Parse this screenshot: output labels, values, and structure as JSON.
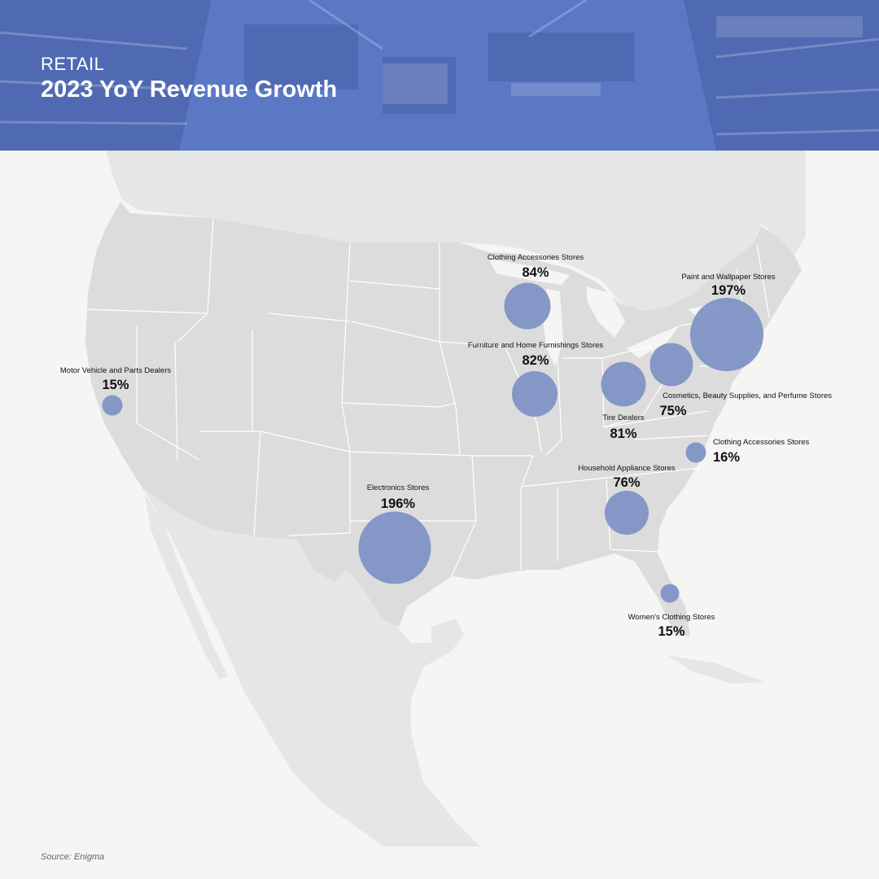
{
  "header": {
    "kicker": "RETAIL",
    "title": "2023 YoY Revenue Growth"
  },
  "source": "Source: Enigma",
  "colors": {
    "header_blue": "#5b78c4",
    "bubble": "#7a8fc4",
    "land": "#dcdcdc",
    "land_outer": "#e6e6e6",
    "background": "#f5f5f4",
    "state_border": "#ffffff"
  },
  "chart_data": {
    "type": "bubble-map",
    "region": "United States",
    "metric": "2023 YoY Revenue Growth",
    "points": [
      {
        "category": "Motor Vehicle and Parts Dealers",
        "value": "15%",
        "growth_pct": 15,
        "location": "Northern California"
      },
      {
        "category": "Clothing Accessories Stores",
        "value": "84%",
        "growth_pct": 84,
        "location": "Wisconsin"
      },
      {
        "category": "Furniture and Home Furnishings Stores",
        "value": "82%",
        "growth_pct": 82,
        "location": "Illinois"
      },
      {
        "category": "Paint and Wallpaper Stores",
        "value": "197%",
        "growth_pct": 197,
        "location": "New York / Connecticut"
      },
      {
        "category": "Tire Dealers",
        "value": "81%",
        "growth_pct": 81,
        "location": "Ohio"
      },
      {
        "category": "Cosmetics, Beauty Supplies, and Perfume Stores",
        "value": "75%",
        "growth_pct": 75,
        "location": "Pennsylvania"
      },
      {
        "category": "Clothing Accessories Stores",
        "value": "16%",
        "growth_pct": 16,
        "location": "North Carolina"
      },
      {
        "category": "Household Appliance Stores",
        "value": "76%",
        "growth_pct": 76,
        "location": "Georgia"
      },
      {
        "category": "Electronics Stores",
        "value": "196%",
        "growth_pct": 196,
        "location": "Texas"
      },
      {
        "category": "Women's Clothing Stores",
        "value": "15%",
        "growth_pct": 15,
        "location": "Florida"
      }
    ]
  }
}
